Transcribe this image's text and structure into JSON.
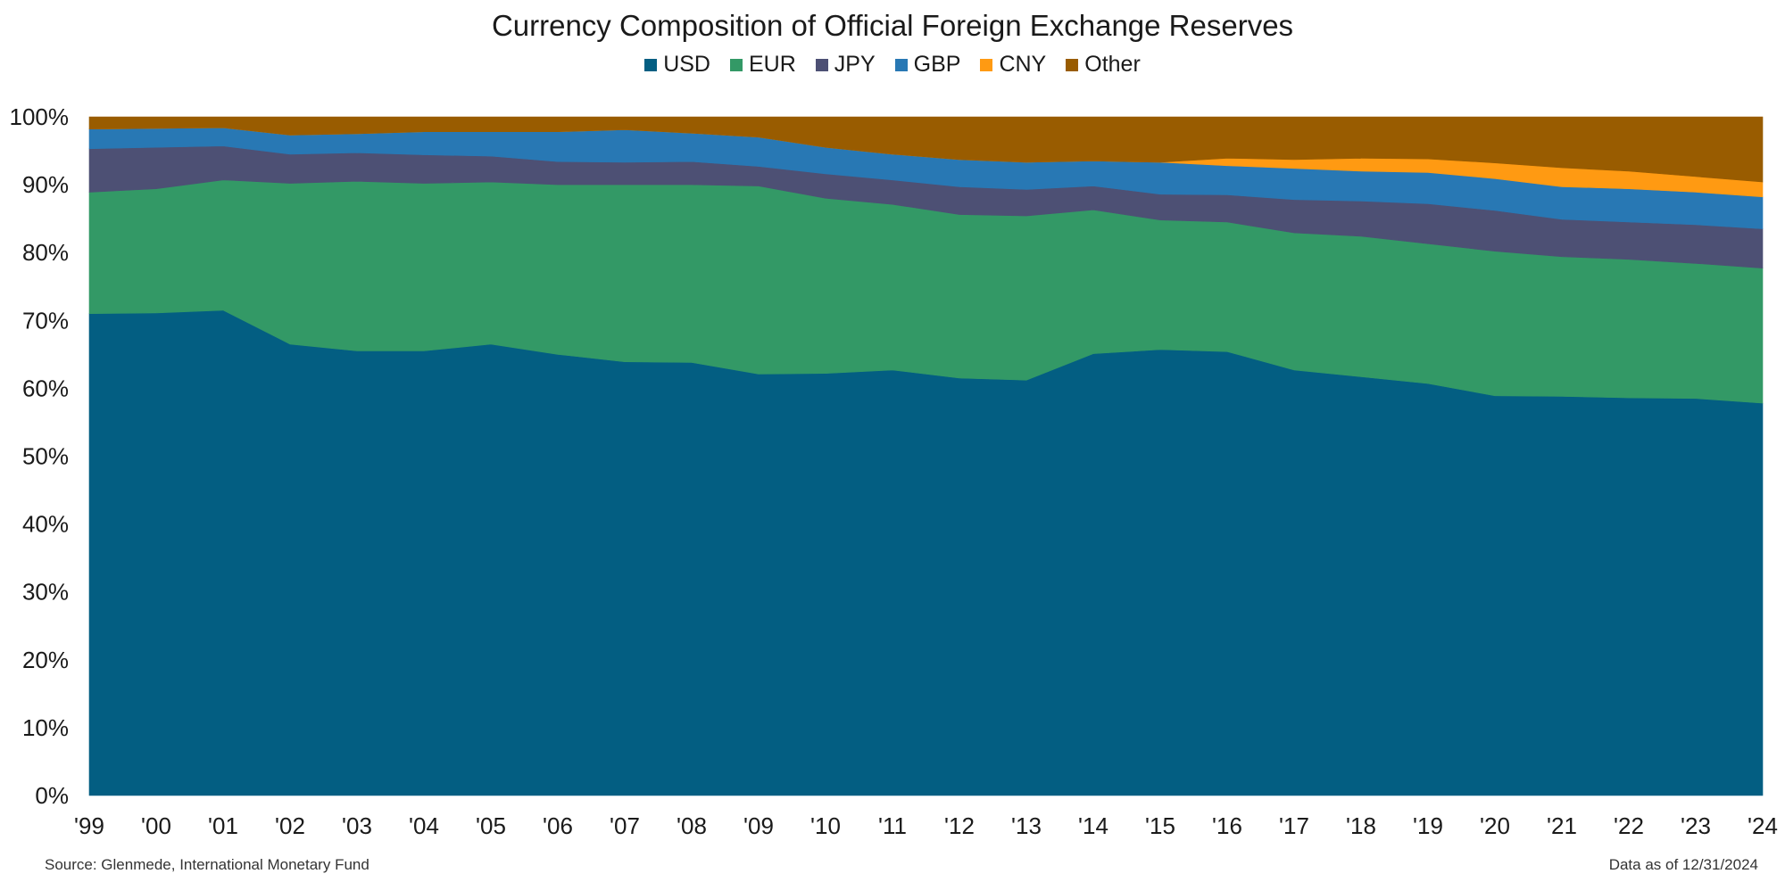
{
  "chart_data": {
    "type": "area",
    "stacked": true,
    "title": "Currency Composition of Official Foreign Exchange Reserves",
    "x": [
      "'99",
      "'00",
      "'01",
      "'02",
      "'03",
      "'04",
      "'05",
      "'06",
      "'07",
      "'08",
      "'09",
      "'10",
      "'11",
      "'12",
      "'13",
      "'14",
      "'15",
      "'16",
      "'17",
      "'18",
      "'19",
      "'20",
      "'21",
      "'22",
      "'23",
      "'24"
    ],
    "series": [
      {
        "name": "USD",
        "color": "#035e82",
        "values": [
          71.0,
          71.1,
          71.5,
          66.5,
          65.5,
          65.5,
          66.5,
          65.0,
          63.9,
          63.8,
          62.1,
          62.2,
          62.7,
          61.5,
          61.2,
          65.1,
          65.7,
          65.4,
          62.7,
          61.7,
          60.7,
          58.9,
          58.8,
          58.6,
          58.5,
          57.8
        ]
      },
      {
        "name": "EUR",
        "color": "#339966",
        "values": [
          17.9,
          18.3,
          19.2,
          23.7,
          25.0,
          24.7,
          23.9,
          25.0,
          26.1,
          26.2,
          27.7,
          25.8,
          24.4,
          24.1,
          24.2,
          21.2,
          19.1,
          19.1,
          20.2,
          20.7,
          20.6,
          21.3,
          20.6,
          20.4,
          19.9,
          19.9
        ]
      },
      {
        "name": "JPY",
        "color": "#4d5074",
        "values": [
          6.4,
          6.1,
          5.0,
          4.3,
          4.2,
          4.2,
          3.8,
          3.4,
          3.3,
          3.4,
          2.9,
          3.6,
          3.6,
          4.1,
          3.9,
          3.5,
          3.8,
          4.0,
          4.9,
          5.2,
          5.9,
          6.0,
          5.5,
          5.5,
          5.7,
          5.8
        ]
      },
      {
        "name": "GBP",
        "color": "#2878b4",
        "values": [
          2.9,
          2.8,
          2.7,
          2.8,
          2.8,
          3.4,
          3.6,
          4.4,
          4.8,
          4.2,
          4.3,
          3.9,
          3.8,
          4.0,
          4.0,
          3.7,
          4.7,
          4.3,
          4.6,
          4.4,
          4.6,
          4.7,
          4.8,
          4.9,
          4.8,
          4.7
        ]
      },
      {
        "name": "CNY",
        "color": "#ff9a12",
        "values": [
          0,
          0,
          0,
          0,
          0,
          0,
          0,
          0,
          0,
          0,
          0,
          0,
          0,
          0,
          0,
          0,
          0,
          1.1,
          1.3,
          1.9,
          2.0,
          2.3,
          2.8,
          2.6,
          2.3,
          2.2
        ]
      },
      {
        "name": "Other",
        "color": "#995c00",
        "values": [
          1.8,
          1.7,
          1.6,
          2.7,
          2.5,
          2.2,
          2.2,
          2.2,
          1.9,
          2.4,
          3.0,
          4.5,
          5.5,
          6.3,
          6.7,
          6.5,
          6.7,
          6.1,
          6.3,
          6.1,
          6.2,
          6.8,
          7.5,
          8.0,
          8.8,
          9.6
        ]
      }
    ],
    "y_ticks": [
      "0%",
      "10%",
      "20%",
      "30%",
      "40%",
      "50%",
      "60%",
      "70%",
      "80%",
      "90%",
      "100%"
    ],
    "ylim": [
      0,
      100
    ],
    "legend_position": "top-center",
    "grid": false
  },
  "footer": {
    "source": "Source: Glenmede, International Monetary Fund",
    "date": "Data as of 12/31/2024"
  }
}
